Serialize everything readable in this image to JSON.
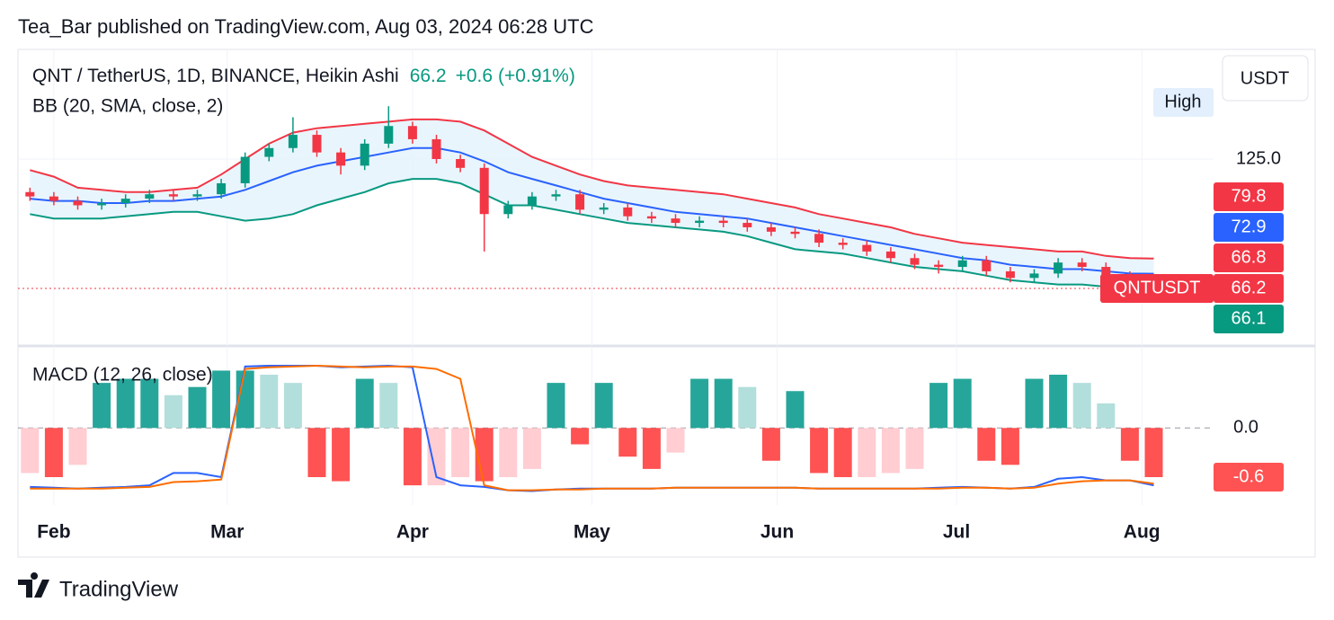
{
  "header": "Tea_Bar published on TradingView.com, Aug 03, 2024 06:28 UTC",
  "footer": "TradingView",
  "chart_data": [
    {
      "type": "candlestick",
      "title": "QNT / TetherUS, 1D, BINANCE, Heikin Ashi",
      "quote": {
        "price": "66.2",
        "change": "+0.6",
        "change_pct": "(+0.91%)"
      },
      "indicator": "BB (20, SMA, close, 2)",
      "currency": "USDT",
      "high_marker": "High",
      "x": [
        2,
        6,
        10,
        14,
        18,
        22,
        26,
        30,
        34,
        38,
        42,
        46,
        50,
        54,
        58,
        62,
        66,
        70,
        74,
        78,
        82,
        86,
        90,
        94,
        98,
        102,
        106,
        110,
        114,
        118,
        122,
        126,
        130,
        134,
        138,
        142,
        146,
        150,
        154,
        158,
        162,
        166,
        170,
        174,
        178,
        182,
        186,
        190
      ],
      "open": [
        110,
        108,
        106,
        104,
        105,
        107,
        109,
        108,
        109,
        114,
        126,
        130,
        136,
        128,
        122,
        132,
        140,
        134,
        125,
        121,
        100,
        104,
        108,
        109,
        102,
        103,
        99,
        98,
        96,
        97,
        96,
        94,
        92,
        91,
        87,
        86,
        83,
        80,
        77,
        76,
        79,
        74,
        71,
        73,
        78,
        76,
        72,
        69
      ],
      "high": [
        112,
        110,
        108,
        107,
        109,
        111,
        111,
        111,
        116,
        128,
        132,
        144,
        138,
        130,
        134,
        149,
        142,
        136,
        127,
        123,
        106,
        110,
        111,
        111,
        105,
        105,
        101,
        100,
        99,
        99,
        98,
        96,
        94,
        93,
        89,
        88,
        85,
        82,
        79,
        81,
        81,
        76,
        75,
        80,
        80,
        78,
        74,
        71
      ],
      "low": [
        106,
        104,
        102,
        102,
        103,
        105,
        106,
        106,
        107,
        112,
        124,
        128,
        126,
        118,
        120,
        130,
        132,
        123,
        119,
        83,
        98,
        102,
        106,
        100,
        100,
        97,
        96,
        94,
        94,
        94,
        92,
        90,
        89,
        85,
        84,
        81,
        78,
        75,
        73,
        74,
        72,
        69,
        69,
        71,
        74,
        70,
        67,
        64
      ],
      "close": [
        108,
        106,
        104,
        105,
        107,
        109,
        108,
        109,
        114,
        126,
        130,
        136,
        128,
        122,
        132,
        140,
        134,
        125,
        121,
        100,
        104,
        108,
        109,
        102,
        103,
        99,
        98,
        96,
        97,
        96,
        94,
        92,
        91,
        87,
        86,
        83,
        80,
        77,
        76,
        79,
        74,
        71,
        73,
        78,
        76,
        72,
        69,
        66.2
      ],
      "up_color": "#089981",
      "down_color": "#f23645",
      "bands": [
        {
          "color": "#f23645",
          "values": [
            120,
            117,
            112,
            111,
            110,
            110,
            111,
            112,
            118,
            125,
            132,
            137,
            139,
            140,
            141,
            142,
            143,
            143,
            142,
            138,
            132,
            126,
            122,
            118,
            115,
            113,
            112,
            111,
            110,
            109,
            107,
            105,
            103,
            100,
            98,
            96,
            94,
            91,
            89,
            87,
            86,
            85,
            84,
            83,
            83,
            81,
            80,
            79.8
          ]
        },
        {
          "color": "#2962ff",
          "values": [
            107,
            106,
            106,
            105,
            105,
            106,
            106,
            107,
            108,
            111,
            115,
            119,
            122,
            124,
            126,
            128,
            130,
            130,
            128,
            124,
            119,
            116,
            113,
            110,
            107,
            105,
            103,
            101,
            100,
            99,
            98,
            96,
            94,
            92,
            90,
            88,
            86,
            84,
            82,
            80,
            79,
            77,
            76,
            75,
            75,
            74,
            73,
            72.9
          ]
        },
        {
          "color": "#089981",
          "values": [
            100,
            98,
            98,
            98,
            99,
            100,
            101,
            101,
            99,
            97,
            98,
            100,
            104,
            107,
            110,
            114,
            116,
            116,
            114,
            109,
            104,
            104,
            102,
            100,
            98,
            96,
            95,
            94,
            93,
            92,
            90,
            87,
            84,
            83,
            82,
            80,
            78,
            76,
            75,
            74,
            72,
            70,
            69,
            68,
            68,
            67,
            67,
            66.1
          ]
        }
      ],
      "band_fill": "#e3f2fd",
      "xlim": [
        0,
        200
      ],
      "xticks": [
        {
          "value": 6,
          "label": "Feb"
        },
        {
          "value": 35,
          "label": "Mar"
        },
        {
          "value": 66,
          "label": "Apr"
        },
        {
          "value": 96,
          "label": "May"
        },
        {
          "value": 127,
          "label": "Jun"
        },
        {
          "value": 157,
          "label": "Jul"
        },
        {
          "value": 188,
          "label": "Aug"
        }
      ],
      "ylim": [
        40.1,
        174.8
      ],
      "yticks": [
        {
          "value": 125,
          "label": "125.0"
        }
      ],
      "grid": true,
      "price_labels": [
        {
          "value": 79.8,
          "color": "#f23645"
        },
        {
          "value": 72.9,
          "color": "#2962ff"
        },
        {
          "value": 66.8,
          "color": "#f23645"
        },
        {
          "value": 66.2,
          "name": "QNTUSDT",
          "color": "#f23645"
        },
        {
          "value": 66.1,
          "color": "#089981"
        }
      ]
    },
    {
      "type": "macd",
      "title": "MACD (12, 26, close)",
      "x": [
        2,
        6,
        10,
        14,
        18,
        22,
        26,
        30,
        34,
        38,
        42,
        46,
        50,
        54,
        58,
        62,
        66,
        70,
        74,
        78,
        82,
        86,
        90,
        94,
        98,
        102,
        106,
        110,
        114,
        118,
        122,
        126,
        130,
        134,
        138,
        142,
        146,
        150,
        154,
        158,
        162,
        166,
        170,
        174,
        178,
        182,
        186,
        190
      ],
      "histogram": [
        -0.55,
        -0.6,
        -0.45,
        0.55,
        0.6,
        0.6,
        0.4,
        0.5,
        0.7,
        0.7,
        0.65,
        0.55,
        -0.6,
        -0.65,
        0.6,
        0.55,
        -0.7,
        -0.7,
        -0.6,
        -0.65,
        -0.6,
        -0.5,
        0.55,
        -0.2,
        0.55,
        -0.35,
        -0.5,
        -0.3,
        0.6,
        0.6,
        0.5,
        -0.4,
        0.45,
        -0.55,
        -0.6,
        -0.6,
        -0.55,
        -0.5,
        0.55,
        0.6,
        -0.4,
        -0.45,
        0.6,
        0.65,
        0.55,
        0.3,
        -0.4,
        -0.6
      ],
      "histogram_colors": [
        "#26a69a",
        "#b2dfdb",
        "#ff5252",
        "#ffcdd2"
      ],
      "series": [
        {
          "color": "#2962ff",
          "values": [
            -0.72,
            -0.73,
            -0.74,
            -0.73,
            -0.72,
            -0.7,
            -0.55,
            -0.55,
            -0.6,
            0.75,
            0.76,
            0.76,
            0.76,
            0.74,
            0.75,
            0.76,
            0.74,
            -0.6,
            -0.7,
            -0.72,
            -0.76,
            -0.77,
            -0.75,
            -0.74,
            -0.74,
            -0.74,
            -0.74,
            -0.73,
            -0.73,
            -0.73,
            -0.73,
            -0.73,
            -0.73,
            -0.74,
            -0.74,
            -0.74,
            -0.74,
            -0.74,
            -0.73,
            -0.72,
            -0.73,
            -0.74,
            -0.72,
            -0.62,
            -0.6,
            -0.64,
            -0.64,
            -0.7
          ]
        },
        {
          "color": "#ff6d00",
          "values": [
            -0.74,
            -0.74,
            -0.74,
            -0.74,
            -0.73,
            -0.72,
            -0.66,
            -0.65,
            -0.63,
            0.72,
            0.74,
            0.75,
            0.76,
            0.75,
            0.74,
            0.75,
            0.75,
            0.72,
            0.6,
            -0.7,
            -0.76,
            -0.76,
            -0.75,
            -0.75,
            -0.74,
            -0.74,
            -0.74,
            -0.73,
            -0.73,
            -0.73,
            -0.73,
            -0.73,
            -0.73,
            -0.74,
            -0.74,
            -0.74,
            -0.74,
            -0.74,
            -0.74,
            -0.73,
            -0.73,
            -0.74,
            -0.73,
            -0.68,
            -0.65,
            -0.64,
            -0.64,
            -0.68
          ]
        }
      ],
      "ylim": [
        -0.94,
        0.99
      ],
      "yticks": [
        {
          "value": 0,
          "label": "0.0"
        }
      ],
      "price_labels": [
        {
          "value": -0.6,
          "color": "#ff5252"
        }
      ]
    }
  ]
}
